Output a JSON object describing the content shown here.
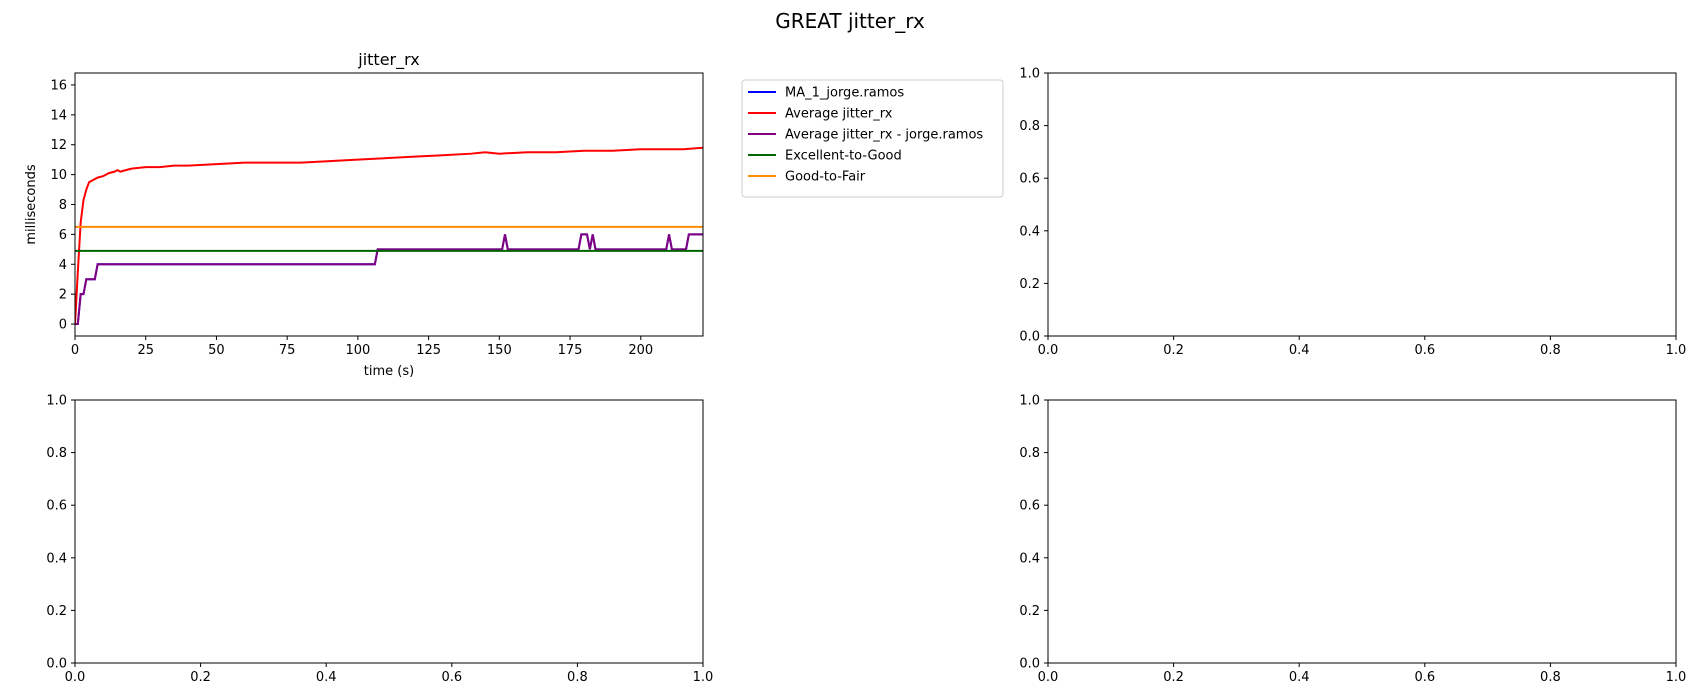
{
  "figure": {
    "suptitle": "GREAT jitter_rx"
  },
  "chart_data": [
    {
      "type": "line",
      "title": "jitter_rx",
      "xlabel": "time (s)",
      "ylabel": "milliseconds",
      "xlim": [
        0,
        222
      ],
      "ylim": [
        -0.8,
        16.8
      ],
      "xticks": [
        0,
        25,
        50,
        75,
        100,
        125,
        150,
        175,
        200
      ],
      "yticks": [
        0,
        2,
        4,
        6,
        8,
        10,
        12,
        14,
        16
      ],
      "grid": false,
      "legend_position": "outside right",
      "series": [
        {
          "name": "MA_1_jorge.ramos",
          "color": "#0000ff",
          "x": [
            0,
            1,
            2,
            3,
            4,
            5,
            6,
            7,
            8,
            9,
            106,
            107,
            151,
            152,
            153,
            178,
            179,
            181,
            182,
            183,
            184,
            209,
            210,
            211,
            216,
            217,
            222
          ],
          "y": [
            0,
            0,
            2,
            2,
            3,
            3,
            3,
            3,
            4,
            4,
            4,
            5,
            5,
            6,
            5,
            5,
            6,
            6,
            5,
            6,
            5,
            5,
            6,
            5,
            5,
            6,
            6
          ]
        },
        {
          "name": "Average jitter_rx",
          "color": "#ff0000",
          "x": [
            0,
            1,
            2,
            3,
            4,
            5,
            6,
            8,
            10,
            12,
            14,
            15,
            16,
            18,
            20,
            25,
            30,
            35,
            40,
            50,
            60,
            70,
            80,
            90,
            100,
            110,
            120,
            130,
            140,
            145,
            150,
            160,
            170,
            180,
            190,
            200,
            210,
            215,
            222
          ],
          "y": [
            0,
            3.5,
            6.8,
            8.3,
            9.0,
            9.5,
            9.6,
            9.8,
            9.9,
            10.1,
            10.2,
            10.3,
            10.2,
            10.3,
            10.4,
            10.5,
            10.5,
            10.6,
            10.6,
            10.7,
            10.8,
            10.8,
            10.8,
            10.9,
            11.0,
            11.1,
            11.2,
            11.3,
            11.4,
            11.5,
            11.4,
            11.5,
            11.5,
            11.6,
            11.6,
            11.7,
            11.7,
            11.7,
            11.8
          ]
        },
        {
          "name": "Average jitter_rx - jorge.ramos",
          "color": "#800080",
          "x": [
            0,
            1,
            2,
            3,
            4,
            5,
            6,
            7,
            8,
            9,
            106,
            107,
            151,
            152,
            153,
            178,
            179,
            181,
            182,
            183,
            184,
            209,
            210,
            211,
            216,
            217,
            222
          ],
          "y": [
            0,
            0,
            2,
            2,
            3,
            3,
            3,
            3,
            4,
            4,
            4,
            5,
            5,
            6,
            5,
            5,
            6,
            6,
            5,
            6,
            5,
            5,
            6,
            5,
            5,
            6,
            6
          ]
        },
        {
          "name": "Excellent-to-Good",
          "color": "#006400",
          "x": [
            0,
            222
          ],
          "y": [
            4.9,
            4.9
          ]
        },
        {
          "name": "Good-to-Fair",
          "color": "#ff8c00",
          "x": [
            0,
            222
          ],
          "y": [
            6.5,
            6.5
          ]
        }
      ]
    },
    {
      "type": "line",
      "title": "",
      "xlim": [
        0,
        1
      ],
      "ylim": [
        0,
        1
      ],
      "xticks": [
        "0.0",
        "0.2",
        "0.4",
        "0.6",
        "0.8",
        "1.0"
      ],
      "yticks": [
        "0.0",
        "0.2",
        "0.4",
        "0.6",
        "0.8",
        "1.0"
      ],
      "series": []
    },
    {
      "type": "line",
      "title": "",
      "xlim": [
        0,
        1
      ],
      "ylim": [
        0,
        1
      ],
      "xticks": [
        "0.0",
        "0.2",
        "0.4",
        "0.6",
        "0.8",
        "1.0"
      ],
      "yticks": [
        "0.0",
        "0.2",
        "0.4",
        "0.6",
        "0.8",
        "1.0"
      ],
      "series": []
    },
    {
      "type": "line",
      "title": "",
      "xlim": [
        0,
        1
      ],
      "ylim": [
        0,
        1
      ],
      "xticks": [
        "0.0",
        "0.2",
        "0.4",
        "0.6",
        "0.8",
        "1.0"
      ],
      "yticks": [
        "0.0",
        "0.2",
        "0.4",
        "0.6",
        "0.8",
        "1.0"
      ],
      "series": []
    }
  ]
}
